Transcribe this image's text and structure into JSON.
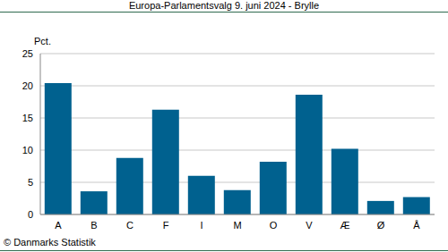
{
  "chart_data": {
    "type": "bar",
    "title": "Europa-Parlamentsvalg 9. juni 2024 - Brylle",
    "y_label": "Pct.",
    "source": "© Danmarks Statistik",
    "categories": [
      "A",
      "B",
      "C",
      "F",
      "I",
      "M",
      "O",
      "V",
      "Æ",
      "Ø",
      "Å"
    ],
    "values": [
      20.4,
      3.6,
      8.8,
      16.3,
      6.0,
      3.8,
      8.2,
      18.6,
      10.2,
      2.1,
      2.7
    ],
    "color": "#00618f",
    "ylim": [
      0,
      25
    ],
    "yticks": [
      0,
      5,
      10,
      15,
      20,
      25
    ],
    "grid": true
  }
}
